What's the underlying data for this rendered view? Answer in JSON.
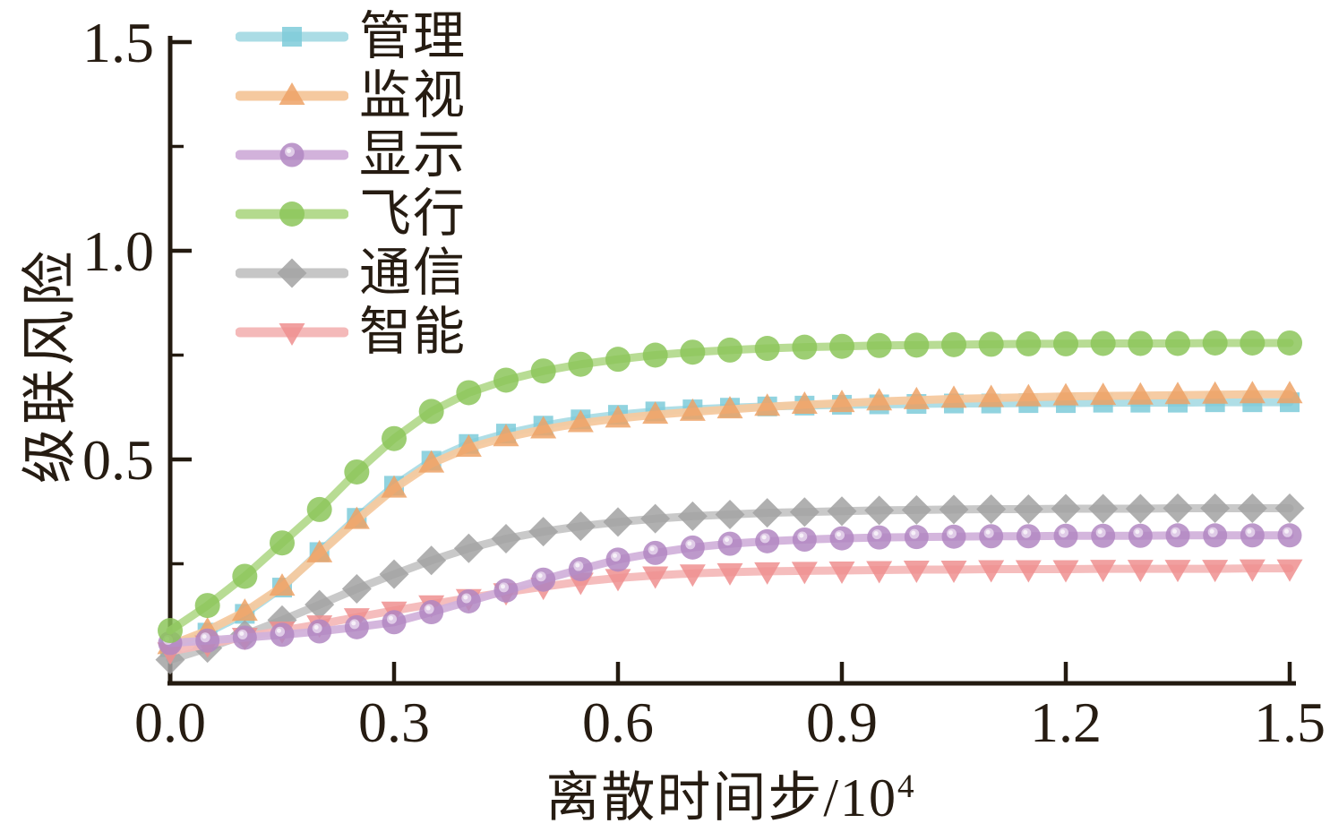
{
  "figure": {
    "background": "#ffffff",
    "text_color": "#261c12",
    "axis_color": "#231a10"
  },
  "chart_data": {
    "type": "line",
    "title": "",
    "xlabel": "离散时间步/10⁴",
    "xlabel_base": "离散时间步/10",
    "xlabel_sup": "4",
    "ylabel": "级联风险",
    "xlim": [
      0,
      1.5
    ],
    "ylim": [
      0,
      1.52
    ],
    "grid": false,
    "legend_position": "upper-left",
    "x_tick_values": [
      0.0,
      0.3,
      0.6,
      0.9,
      1.2,
      1.5
    ],
    "x_tick_labels": [
      "0.0",
      "0.3",
      "0.6",
      "0.9",
      "1.2",
      "1.5"
    ],
    "y_tick_values": [
      0.5,
      1.0,
      1.5
    ],
    "y_tick_labels": [
      "0.5",
      "1.0",
      "1.5"
    ],
    "y_minor_tick_values": [
      0.25,
      0.75,
      1.25
    ],
    "draw_order": [
      0,
      1,
      4,
      5,
      2,
      3
    ],
    "x": [
      0.0,
      0.05,
      0.1,
      0.15,
      0.2,
      0.25,
      0.3,
      0.35,
      0.4,
      0.45,
      0.5,
      0.55,
      0.6,
      0.65,
      0.7,
      0.75,
      0.8,
      0.85,
      0.9,
      0.95,
      1.0,
      1.05,
      1.1,
      1.15,
      1.2,
      1.25,
      1.3,
      1.35,
      1.4,
      1.45,
      1.5
    ],
    "series": [
      {
        "name": "管理",
        "marker": "square",
        "line_color": "#abdce5",
        "marker_color": "#7ecbd9",
        "values": [
          0.05,
          0.085,
          0.13,
          0.193,
          0.278,
          0.36,
          0.437,
          0.497,
          0.537,
          0.562,
          0.581,
          0.596,
          0.607,
          0.615,
          0.62,
          0.624,
          0.627,
          0.629,
          0.631,
          0.632,
          0.633,
          0.634,
          0.634,
          0.635,
          0.635,
          0.636,
          0.636,
          0.636,
          0.637,
          0.637,
          0.637
        ]
      },
      {
        "name": "监视",
        "marker": "triangle-up",
        "line_color": "#f5c99f",
        "marker_color": "#eda266",
        "values": [
          0.055,
          0.09,
          0.135,
          0.195,
          0.275,
          0.355,
          0.43,
          0.49,
          0.528,
          0.553,
          0.572,
          0.587,
          0.598,
          0.607,
          0.614,
          0.62,
          0.626,
          0.631,
          0.635,
          0.639,
          0.642,
          0.645,
          0.647,
          0.649,
          0.651,
          0.652,
          0.653,
          0.654,
          0.655,
          0.656,
          0.656
        ]
      },
      {
        "name": "显示",
        "marker": "ball",
        "line_color": "#d2b2db",
        "marker_color": "#b287c2",
        "values": [
          0.06,
          0.066,
          0.073,
          0.08,
          0.088,
          0.098,
          0.11,
          0.134,
          0.16,
          0.186,
          0.212,
          0.237,
          0.26,
          0.276,
          0.289,
          0.298,
          0.304,
          0.308,
          0.311,
          0.313,
          0.314,
          0.315,
          0.316,
          0.316,
          0.317,
          0.317,
          0.317,
          0.318,
          0.318,
          0.318,
          0.318
        ]
      },
      {
        "name": "飞行",
        "marker": "circle",
        "line_color": "#b4da8e",
        "marker_color": "#8cc65a",
        "values": [
          0.09,
          0.15,
          0.22,
          0.3,
          0.38,
          0.47,
          0.55,
          0.615,
          0.66,
          0.69,
          0.712,
          0.728,
          0.74,
          0.75,
          0.757,
          0.762,
          0.766,
          0.769,
          0.771,
          0.773,
          0.774,
          0.775,
          0.776,
          0.777,
          0.777,
          0.778,
          0.778,
          0.778,
          0.779,
          0.779,
          0.779
        ]
      },
      {
        "name": "通信",
        "marker": "diamond",
        "line_color": "#c6c6c6",
        "marker_color": "#a2a2a2",
        "values": [
          0.02,
          0.048,
          0.08,
          0.115,
          0.152,
          0.19,
          0.225,
          0.258,
          0.287,
          0.31,
          0.327,
          0.34,
          0.35,
          0.358,
          0.364,
          0.368,
          0.372,
          0.374,
          0.376,
          0.378,
          0.379,
          0.38,
          0.381,
          0.381,
          0.382,
          0.382,
          0.382,
          0.383,
          0.383,
          0.383,
          0.383
        ]
      },
      {
        "name": "智能",
        "marker": "triangle-down",
        "line_color": "#f4b9b9",
        "marker_color": "#ee8f8f",
        "values": [
          0.04,
          0.057,
          0.075,
          0.09,
          0.105,
          0.122,
          0.138,
          0.153,
          0.168,
          0.182,
          0.195,
          0.207,
          0.216,
          0.222,
          0.227,
          0.23,
          0.232,
          0.233,
          0.234,
          0.235,
          0.236,
          0.236,
          0.237,
          0.237,
          0.237,
          0.238,
          0.238,
          0.238,
          0.238,
          0.239,
          0.239
        ]
      }
    ]
  }
}
